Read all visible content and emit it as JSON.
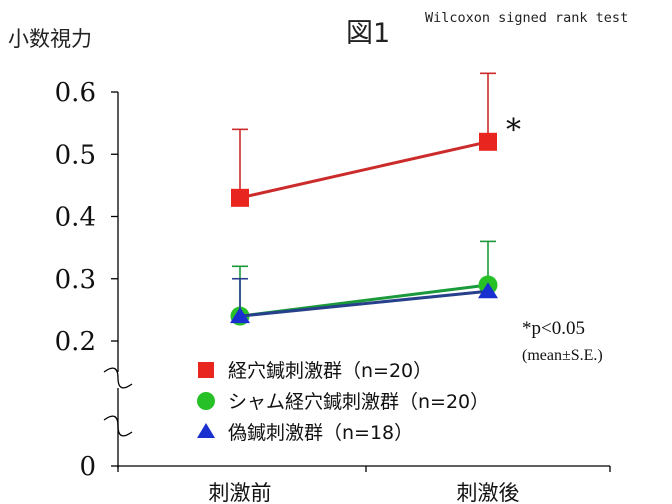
{
  "chart_data": {
    "type": "line",
    "title": "図1",
    "note": "Wilcoxon signed rank test",
    "ylabel": "小数視力",
    "categories": [
      "刺激前",
      "刺激後"
    ],
    "y_ticks": [
      "0.6",
      "0.5",
      "0.4",
      "0.3",
      "0.2",
      "0"
    ],
    "ylim": [
      0.2,
      0.6
    ],
    "axis_break": true,
    "series": [
      {
        "name": "経穴鍼刺激群（n=20）",
        "marker": "square",
        "color": "#e8261f",
        "line_color": "#cc2b2b",
        "values": [
          0.43,
          0.52
        ],
        "se": [
          0.11,
          0.11
        ],
        "significance": [
          null,
          "*"
        ]
      },
      {
        "name": "シャム経穴鍼刺激群（n=20）",
        "marker": "circle",
        "color": "#27c127",
        "line_color": "#1a9a3a",
        "values": [
          0.24,
          0.29
        ],
        "se": [
          0.08,
          0.07
        ],
        "significance": [
          null,
          null
        ]
      },
      {
        "name": "偽鍼刺激群（n=18）",
        "marker": "triangle",
        "color": "#1a2fd0",
        "line_color": "#27408b",
        "values": [
          0.24,
          0.28
        ],
        "se": [
          0.06,
          0.0
        ],
        "significance": [
          null,
          null
        ]
      }
    ],
    "significance_note": "*p<0.05",
    "stats_note": "(mean±S.E.)",
    "grid": false,
    "legend_placement": "bottom-left"
  }
}
